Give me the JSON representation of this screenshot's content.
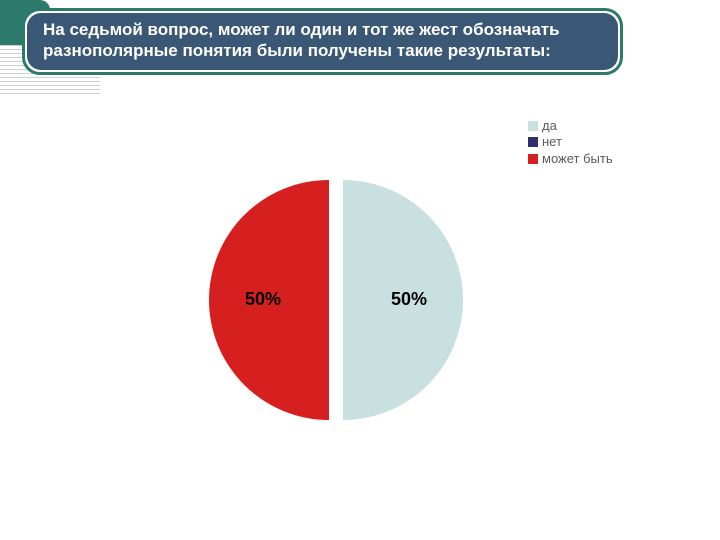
{
  "banner": {
    "text": "На седьмой вопрос, может ли один и тот же жест обозначать разнополярные понятия были получены такие результаты:",
    "bg_color": "#3a5876",
    "border_color": "#2b7a6b",
    "text_color": "#ffffff",
    "font_size": 17,
    "font_weight": "bold"
  },
  "decor": {
    "corner_color": "#2b7a6b",
    "stripe_color": "#d0d0d0"
  },
  "chart": {
    "type": "pie",
    "diameter": 240,
    "gap": 14,
    "slices": [
      {
        "label": "да",
        "value": 50,
        "color": "#c9e0e0",
        "pct_label": "50%",
        "explode": 1
      },
      {
        "label": "нет",
        "value": 0,
        "color": "#2d2f6e",
        "pct_label": "",
        "explode": 0
      },
      {
        "label": "может быть",
        "value": 50,
        "color": "#d61f1f",
        "pct_label": "50%",
        "explode": 0
      }
    ],
    "label_font_size": 18,
    "label_color": "#000000"
  },
  "legend": {
    "font_size": 13,
    "text_color": "#5a5a5a",
    "items": [
      {
        "label": "да",
        "color": "#c9e0e0"
      },
      {
        "label": "нет",
        "color": "#2d2f6e"
      },
      {
        "label": "может быть",
        "color": "#d61f1f"
      }
    ]
  }
}
